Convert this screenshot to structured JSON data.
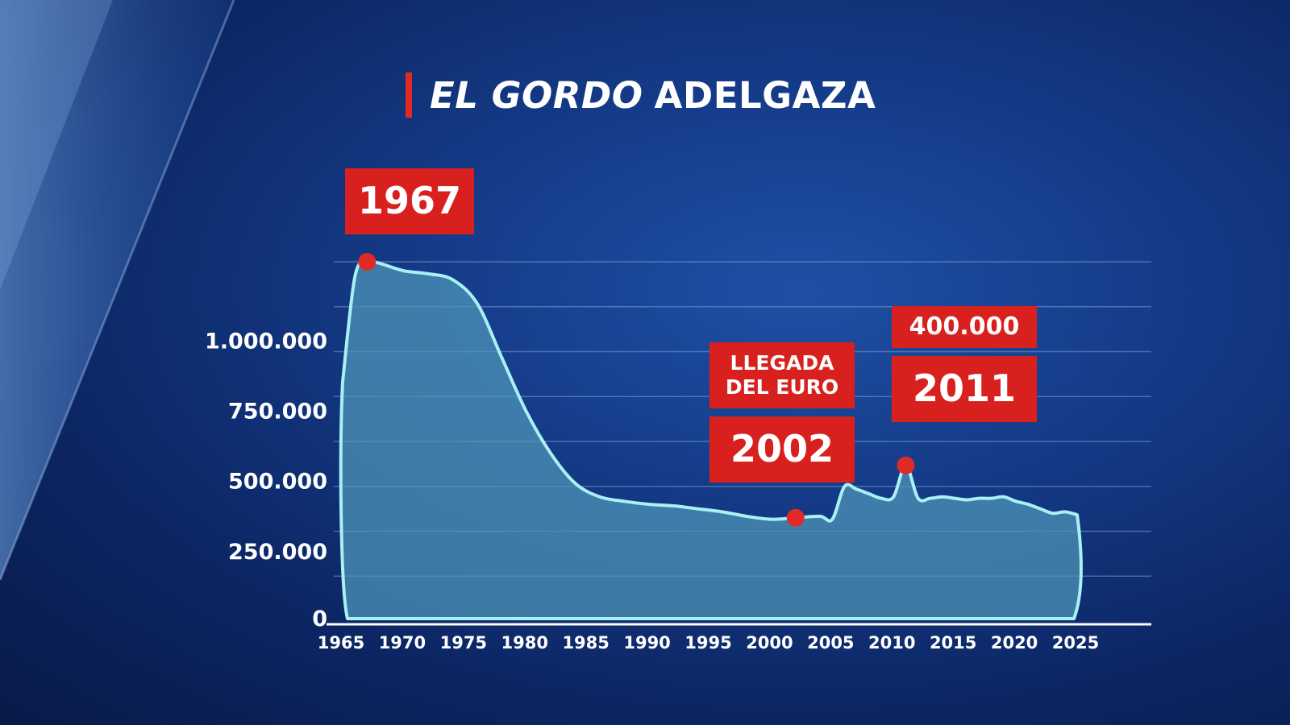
{
  "title": {
    "italic": "EL GORDO",
    "plain": "ADELGAZA"
  },
  "colors": {
    "accent": "#d8211f",
    "line": "#a9f0f4",
    "fill": "#4f97b8",
    "marker": "#e12a25",
    "text": "#ffffff"
  },
  "callouts": {
    "c1967": {
      "year": "1967"
    },
    "c2002": {
      "note": "LLEGADA\nDEL EURO",
      "year": "2002"
    },
    "c2011": {
      "value": "400.000",
      "year": "2011"
    }
  },
  "chart_data": {
    "type": "area",
    "title": "EL GORDO ADELGAZA",
    "xlabel": "",
    "ylabel": "",
    "xlim": [
      1965,
      2025
    ],
    "ylim": [
      0,
      1200000
    ],
    "grid": true,
    "x_ticks": [
      "1965",
      "1970",
      "1975",
      "1980",
      "1985",
      "1990",
      "1995",
      "2000",
      "2005",
      "2010",
      "2015",
      "2020",
      "2025"
    ],
    "y_ticks": [
      "0",
      "250.000",
      "500.000",
      "750.000",
      "1.000.000"
    ],
    "y_tick_values": [
      0,
      250000,
      500000,
      750000,
      1000000
    ],
    "x": [
      1965,
      1966,
      1967,
      1968,
      1970,
      1972,
      1974,
      1976,
      1978,
      1980,
      1982,
      1984,
      1986,
      1988,
      1990,
      1992,
      1994,
      1996,
      1998,
      2000,
      2002,
      2004,
      2005,
      2006,
      2007,
      2008,
      2009,
      2010,
      2011,
      2012,
      2013,
      2014,
      2015,
      2016,
      2017,
      2018,
      2019,
      2020,
      2021,
      2022,
      2023,
      2024,
      2025
    ],
    "values": [
      800000,
      1150000,
      1200000,
      1195000,
      1170000,
      1160000,
      1140000,
      1060000,
      880000,
      700000,
      560000,
      460000,
      415000,
      400000,
      390000,
      385000,
      375000,
      365000,
      350000,
      340000,
      345000,
      350000,
      340000,
      450000,
      440000,
      425000,
      410000,
      415000,
      520000,
      410000,
      410000,
      415000,
      410000,
      405000,
      410000,
      410000,
      415000,
      400000,
      390000,
      375000,
      360000,
      365000,
      355000
    ],
    "highlights": [
      {
        "x": 1967,
        "y": 1200000,
        "label": "1967"
      },
      {
        "x": 2002,
        "y": 345000,
        "label": "2002",
        "annotation": "LLEGADA DEL EURO"
      },
      {
        "x": 2011,
        "y": 520000,
        "label": "2011",
        "annotation": "400.000"
      }
    ]
  }
}
